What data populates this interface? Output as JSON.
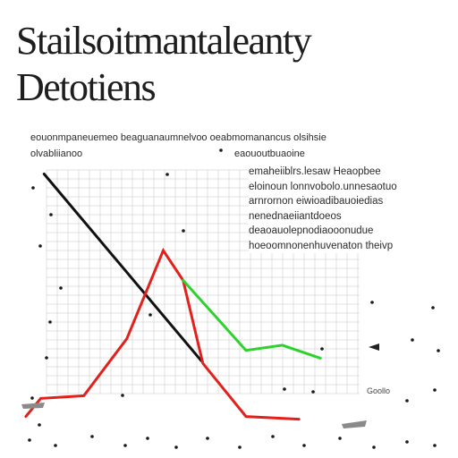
{
  "title": {
    "line1": "Stailsoitmantaleanty",
    "line2": "Detotiens"
  },
  "captions": {
    "top_line": "eouonmpaneuemeo beaguanaumnelvoo oeabmomanancus olsihsie",
    "top_left": "olvabliianoo",
    "top_right": "eaououtbuaoine"
  },
  "note_lines": [
    "emaheiiblrs.lesaw Heaopbee",
    "eloinoun lonnvobolo.unnesaotuo",
    "arnrornon eiwioadibauoiedias",
    "nenednaeiiantdoeos",
    "deaoauolepnodiaooonudue",
    "hoeoomnonenhuvenaton theivp"
  ],
  "tick_labels": {
    "bottom_right": "Goollo"
  },
  "colors": {
    "grid": "#d9d9d9",
    "black_series": "#111111",
    "red_series": "#e3211c",
    "green_series": "#2fd12f",
    "dot": "#1a1a1a",
    "gray_mark": "#8a8a8a"
  },
  "chart_data": {
    "type": "line",
    "title": "Stailsoitmantaleanty Detotiens",
    "xlabel": "",
    "ylabel": "",
    "xlim": [
      0,
      10
    ],
    "ylim": [
      0,
      10
    ],
    "grid": true,
    "series": [
      {
        "color": "#111111",
        "x": [
          0.25,
          5.0
        ],
        "y": [
          9.5,
          2.3
        ]
      },
      {
        "color": "#e3211c",
        "x": [
          -0.3,
          0.15,
          1.45,
          2.75,
          3.85,
          4.45,
          5.05,
          6.35,
          7.95
        ],
        "y": [
          0.15,
          0.85,
          0.95,
          3.15,
          6.55,
          5.4,
          2.2,
          0.15,
          0.05
        ]
      },
      {
        "color": "#2fd12f",
        "x": [
          4.45,
          6.35,
          7.45,
          8.6
        ],
        "y": [
          5.4,
          2.7,
          2.9,
          2.4
        ]
      }
    ]
  }
}
